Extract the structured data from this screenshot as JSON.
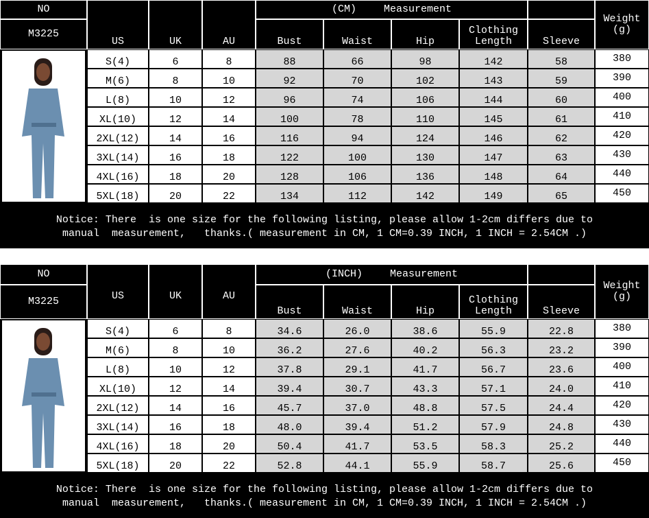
{
  "tables": [
    {
      "no_label": "NO",
      "code": "M3225",
      "unit": "(CM)",
      "measurement": "Measurement",
      "headers": [
        "US",
        "UK",
        "AU",
        "Bust",
        "Waist",
        "Hip",
        "Clothing Length",
        "Sleeve",
        "Weight (g)"
      ],
      "rows": [
        [
          "S(4)",
          "6",
          "8",
          "88",
          "66",
          "98",
          "142",
          "58",
          "380"
        ],
        [
          "M(6)",
          "8",
          "10",
          "92",
          "70",
          "102",
          "143",
          "59",
          "390"
        ],
        [
          "L(8)",
          "10",
          "12",
          "96",
          "74",
          "106",
          "144",
          "60",
          "400"
        ],
        [
          "XL(10)",
          "12",
          "14",
          "100",
          "78",
          "110",
          "145",
          "61",
          "410"
        ],
        [
          "2XL(12)",
          "14",
          "16",
          "116",
          "94",
          "124",
          "146",
          "62",
          "420"
        ],
        [
          "3XL(14)",
          "16",
          "18",
          "122",
          "100",
          "130",
          "147",
          "63",
          "430"
        ],
        [
          "4XL(16)",
          "18",
          "20",
          "128",
          "106",
          "136",
          "148",
          "64",
          "440"
        ],
        [
          "5XL(18)",
          "20",
          "22",
          "134",
          "112",
          "142",
          "149",
          "65",
          "450"
        ]
      ],
      "notice": [
        "Notice: There  is one size for the following listing, please allow 1-2cm differs due to",
        "manual  measurement,   thanks.( measurement in CM, 1 CM=0.39 INCH, 1 INCH = 2.54CM .)"
      ]
    },
    {
      "no_label": "NO",
      "code": "M3225",
      "unit": "(INCH)",
      "measurement": "Measurement",
      "headers": [
        "US",
        "UK",
        "AU",
        "Bust",
        "Waist",
        "Hip",
        "Clothing Length",
        "Sleeve",
        "Weight (g)"
      ],
      "rows": [
        [
          "S(4)",
          "6",
          "8",
          "34.6",
          "26.0",
          "38.6",
          "55.9",
          "22.8",
          "380"
        ],
        [
          "M(6)",
          "8",
          "10",
          "36.2",
          "27.6",
          "40.2",
          "56.3",
          "23.2",
          "390"
        ],
        [
          "L(8)",
          "10",
          "12",
          "37.8",
          "29.1",
          "41.7",
          "56.7",
          "23.6",
          "400"
        ],
        [
          "XL(10)",
          "12",
          "14",
          "39.4",
          "30.7",
          "43.3",
          "57.1",
          "24.0",
          "410"
        ],
        [
          "2XL(12)",
          "14",
          "16",
          "45.7",
          "37.0",
          "48.8",
          "57.5",
          "24.4",
          "420"
        ],
        [
          "3XL(14)",
          "16",
          "18",
          "48.0",
          "39.4",
          "51.2",
          "57.9",
          "24.8",
          "430"
        ],
        [
          "4XL(16)",
          "18",
          "20",
          "50.4",
          "41.7",
          "53.5",
          "58.3",
          "25.2",
          "440"
        ],
        [
          "5XL(18)",
          "20",
          "22",
          "52.8",
          "44.1",
          "55.9",
          "58.7",
          "25.6",
          "450"
        ]
      ],
      "notice": [
        "Notice: There  is one size for the following listing, please allow 1-2cm differs due to",
        "manual  measurement,   thanks.( measurement in CM, 1 CM=0.39 INCH, 1 INCH = 2.54CM .)"
      ]
    }
  ]
}
